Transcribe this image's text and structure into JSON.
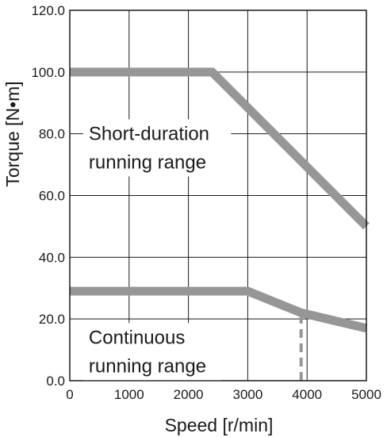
{
  "chart_data": {
    "type": "line",
    "xlabel": "Speed [r/min]",
    "ylabel": "Torque [N•m]",
    "xlim": [
      0,
      5000
    ],
    "ylim": [
      0,
      120
    ],
    "x_ticks": [
      "0",
      "1000",
      "2000",
      "3000",
      "4000",
      "5000"
    ],
    "y_ticks": [
      "0.0",
      "20.0",
      "40.0",
      "60.0",
      "80.0",
      "100.0",
      "120.0"
    ],
    "grid": true,
    "series": [
      {
        "x": [
          0,
          2400,
          5000
        ],
        "y": [
          100,
          100,
          50
        ],
        "color": "#969696"
      },
      {
        "x": [
          0,
          3000,
          3900,
          5000
        ],
        "y": [
          29,
          29,
          22,
          17
        ],
        "color": "#969696"
      }
    ],
    "marker_line": {
      "x": 3900,
      "y": [
        0,
        22
      ],
      "style": "dashed",
      "color": "#969696"
    },
    "annotations": [
      {
        "lines": [
          "Short-duration",
          "running range"
        ],
        "x": 320,
        "y": 78
      },
      {
        "lines": [
          "Continuous",
          "running range"
        ],
        "x": 320,
        "y": 12
      }
    ]
  }
}
